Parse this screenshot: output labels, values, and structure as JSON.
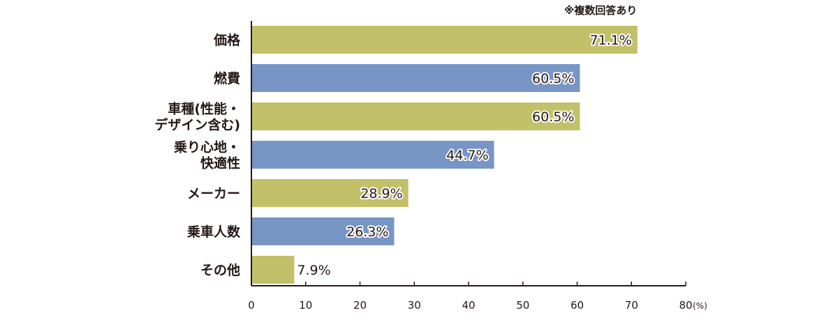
{
  "note": "※複数回答あり",
  "chart_data": {
    "type": "bar",
    "orientation": "horizontal",
    "categories": [
      [
        "価格"
      ],
      [
        "燃費"
      ],
      [
        "車種(性能・",
        "デザイン含む)"
      ],
      [
        "乗り心地・",
        "快適性"
      ],
      [
        "メーカー"
      ],
      [
        "乗車人数"
      ],
      [
        "その他"
      ]
    ],
    "values": [
      71.1,
      60.5,
      60.5,
      44.7,
      28.9,
      26.3,
      7.9
    ],
    "value_labels": [
      "71.1%",
      "60.5%",
      "60.5%",
      "44.7%",
      "28.9%",
      "26.3%",
      "7.9%"
    ],
    "bar_colors": [
      "#c2c069",
      "#7795c5",
      "#c2c069",
      "#7795c5",
      "#c2c069",
      "#7795c5",
      "#c2c069"
    ],
    "xlim": [
      0,
      80
    ],
    "xticks": [
      0,
      10,
      20,
      30,
      40,
      50,
      60,
      70,
      80
    ],
    "xunit": "(%)",
    "grid": false,
    "legend": "none"
  }
}
